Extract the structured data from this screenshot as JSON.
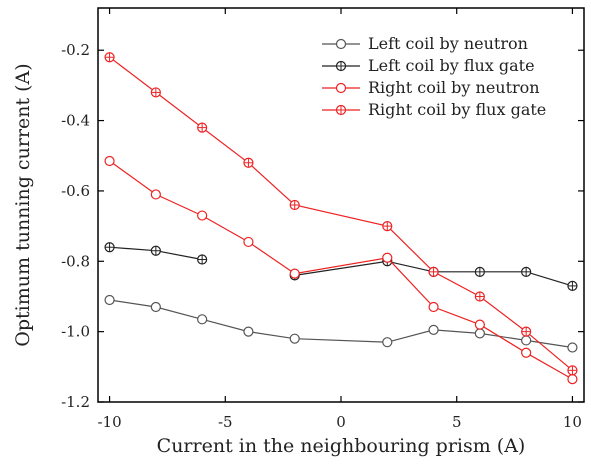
{
  "chart_data": {
    "type": "line",
    "title": "",
    "xlabel": "Current in the neighbouring prism (A)",
    "ylabel": "Optimum tunning current (A)",
    "xlim": [
      -10.5,
      10.5
    ],
    "ylim": [
      -1.2,
      -0.08
    ],
    "x_ticks": [
      -10,
      -5,
      0,
      5,
      10
    ],
    "x_tick_labels": [
      "-10",
      "-5",
      "0",
      "5",
      "10"
    ],
    "y_ticks": [
      -1.2,
      -1.0,
      -0.8,
      -0.6,
      -0.4,
      -0.2
    ],
    "y_tick_labels": [
      "-1.2",
      "-1.0",
      "-0.8",
      "-0.6",
      "-0.4",
      "-0.2"
    ],
    "grid": false,
    "legend_position": "top-right",
    "series": [
      {
        "name": "Left coil by neutron",
        "color": "#555555",
        "marker": "circle",
        "x": [
          -10,
          -8,
          -6,
          -4,
          -2,
          2,
          4,
          6,
          8,
          10
        ],
        "values": [
          -0.91,
          -0.93,
          -0.965,
          -1.0,
          -1.02,
          -1.03,
          -0.995,
          -1.005,
          -1.025,
          -1.045
        ]
      },
      {
        "name": "Left coil by flux gate",
        "color": "#222222",
        "marker": "circle-plus",
        "x": [
          -10,
          -8,
          -6,
          -4,
          -2,
          2,
          4,
          6,
          8,
          10
        ],
        "values": [
          -0.76,
          -0.77,
          -0.795,
          null,
          -0.84,
          -0.8,
          -0.83,
          -0.83,
          -0.83,
          -0.87
        ]
      },
      {
        "name": "Right coil by neutron",
        "color": "#ee2222",
        "marker": "circle",
        "x": [
          -10,
          -8,
          -6,
          -4,
          -2,
          2,
          4,
          6,
          8,
          10
        ],
        "values": [
          -0.515,
          -0.61,
          -0.67,
          -0.745,
          -0.835,
          -0.79,
          -0.93,
          -0.98,
          -1.06,
          -1.135
        ]
      },
      {
        "name": "Right coil by flux gate",
        "color": "#ee2222",
        "marker": "circle-plus",
        "x": [
          -10,
          -8,
          -6,
          -4,
          -2,
          2,
          4,
          6,
          8,
          10
        ],
        "values": [
          -0.22,
          -0.32,
          -0.42,
          -0.52,
          -0.64,
          -0.7,
          -0.83,
          -0.9,
          -1.0,
          -1.11
        ]
      }
    ]
  }
}
